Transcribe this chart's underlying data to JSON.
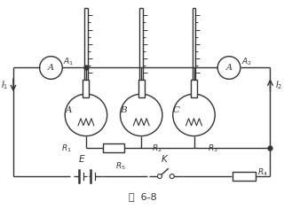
{
  "bg_color": "#ffffff",
  "line_color": "#333333",
  "fig_caption": "图  6-8",
  "bulb_labels": [
    "A",
    "B",
    "C"
  ],
  "R_labels": [
    "R₁",
    "R₂",
    "R₃",
    "R₄",
    "R₅"
  ],
  "ammeter_labels": [
    "A₁",
    "A₂"
  ],
  "E_label": "E",
  "K_label": "K",
  "I1_label": "I₁",
  "I2_label": "I₂"
}
